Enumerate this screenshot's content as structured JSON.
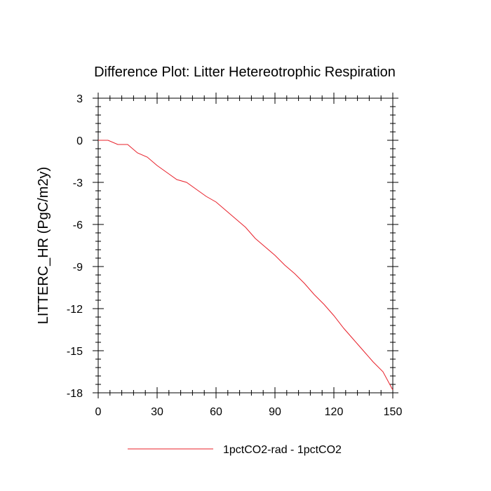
{
  "chart_data": {
    "type": "line",
    "title": "Difference Plot: Litter Hetereotrophic Respiration",
    "xlabel": "",
    "ylabel": "LITTERC_HR  (PgC/m2y)",
    "xlim": [
      0,
      150
    ],
    "ylim": [
      -18,
      3
    ],
    "x_ticks": [
      0,
      30,
      60,
      90,
      120,
      150
    ],
    "y_ticks": [
      3,
      0,
      -3,
      -6,
      -9,
      -12,
      -15,
      -18
    ],
    "grid": false,
    "legend_position": "bottom",
    "colors": {
      "series": "#e8202a",
      "axes": "#000000"
    },
    "series": [
      {
        "name": "1pctCO2-rad - 1pctCO2",
        "x": [
          0,
          5,
          10,
          15,
          20,
          25,
          30,
          35,
          40,
          45,
          50,
          55,
          60,
          65,
          70,
          75,
          80,
          85,
          90,
          95,
          100,
          105,
          110,
          115,
          120,
          125,
          130,
          135,
          140,
          145,
          150
        ],
        "y": [
          0,
          0,
          -0.3,
          -0.3,
          -0.9,
          -1.2,
          -1.8,
          -2.3,
          -2.8,
          -3.0,
          -3.5,
          -4.0,
          -4.4,
          -5.0,
          -5.6,
          -6.2,
          -7.0,
          -7.6,
          -8.2,
          -8.9,
          -9.5,
          -10.2,
          -11.0,
          -11.7,
          -12.5,
          -13.4,
          -14.2,
          -15.0,
          -15.8,
          -16.5,
          -17.8
        ]
      }
    ]
  }
}
